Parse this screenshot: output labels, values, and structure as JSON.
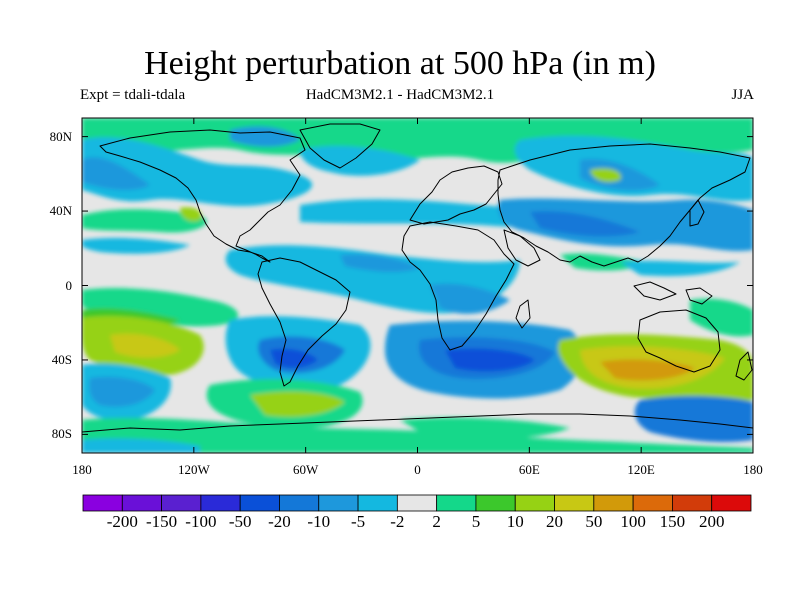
{
  "title": "Height perturbation at 500 hPa (in m)",
  "expt_label": "Expt = tdali-tdala",
  "model_label": "HadCM3M2.1 - HadCM3M2.1",
  "season_label": "JJA",
  "y_ticks": [
    {
      "label": "80N",
      "lat": 80
    },
    {
      "label": "40N",
      "lat": 40
    },
    {
      "label": "0",
      "lat": 0
    },
    {
      "label": "40S",
      "lat": -40
    },
    {
      "label": "80S",
      "lat": -80
    }
  ],
  "x_ticks": [
    {
      "label": "180",
      "lon": -180
    },
    {
      "label": "120W",
      "lon": -120
    },
    {
      "label": "60W",
      "lon": -60
    },
    {
      "label": "0",
      "lon": 0
    },
    {
      "label": "60E",
      "lon": 60
    },
    {
      "label": "120E",
      "lon": 120
    },
    {
      "label": "180",
      "lon": 180
    }
  ],
  "colorbar": {
    "colors": [
      "#8a00e0",
      "#6a10d8",
      "#5a20d0",
      "#2a2ad8",
      "#0a50d8",
      "#1478d8",
      "#1e98dc",
      "#14b8e0",
      "#e6e6e6",
      "#14d88a",
      "#3cc82c",
      "#96d214",
      "#c8c814",
      "#d29a0a",
      "#dc6a0a",
      "#d23c0a",
      "#dc0a0a"
    ],
    "labels": [
      "-200",
      "-150",
      "-100",
      "-50",
      "-20",
      "-10",
      "-5",
      "-2",
      "2",
      "5",
      "10",
      "20",
      "50",
      "100",
      "150",
      "200"
    ]
  },
  "colors": {
    "ocean_neutral": "#e6e6e6",
    "coast": "#000000"
  }
}
